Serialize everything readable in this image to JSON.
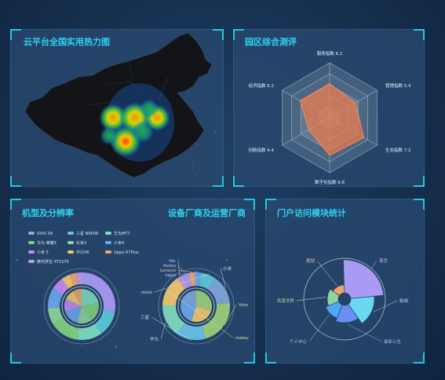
{
  "panels": {
    "heatmap": {
      "title": "云平台全国实用热力图"
    },
    "radar": {
      "title": "园区综合测评",
      "indicators": [
        {
          "label": "服务指数 6.2",
          "value": 6.2
        },
        {
          "label": "管理指数 5.4",
          "value": 5.4
        },
        {
          "label": "生态指数 7.2",
          "value": 7.2
        },
        {
          "label": "数字化指数 6.8",
          "value": 6.8
        },
        {
          "label": "创新指数 4.4",
          "value": 4.4
        },
        {
          "label": "经济指数 6.2",
          "value": 6.2
        }
      ],
      "max": 10
    },
    "models": {
      "title": "机型及分辨率",
      "title2": "设备厂商及运营厂商",
      "legend": [
        {
          "label": "VIVO X6",
          "color": "#a99bf4"
        },
        {
          "label": "三星 N9008",
          "color": "#5cc9d9"
        },
        {
          "label": "华为MT7",
          "color": "#7fdcc0"
        },
        {
          "label": "华为 荣耀3",
          "color": "#7fd27e"
        },
        {
          "label": "红米3",
          "color": "#8fd49a"
        },
        {
          "label": "小米4",
          "color": "#6aa7f0"
        },
        {
          "label": "小米 5",
          "color": "#c58bf0"
        },
        {
          "label": "中兴V6",
          "color": "#f2c86b"
        },
        {
          "label": "Oppo R7Plus",
          "color": "#f2a36b"
        },
        {
          "label": "摩托罗拉 XT1570",
          "color": "#c79ad8"
        }
      ],
      "vendors": [
        "htc",
        "Nubia",
        "Lenovo",
        "oppo",
        "moto",
        "小米",
        "Vivo",
        "三星",
        "华为",
        "meizu"
      ]
    },
    "portal": {
      "title": "门户访问模块统计",
      "segments": [
        "新闻",
        "首页",
        "最新公告",
        "个人中心",
        "共享文件",
        "规划"
      ]
    }
  },
  "colors": {
    "accent": "#2fd3f0",
    "panel_bg": "#284e74"
  }
}
